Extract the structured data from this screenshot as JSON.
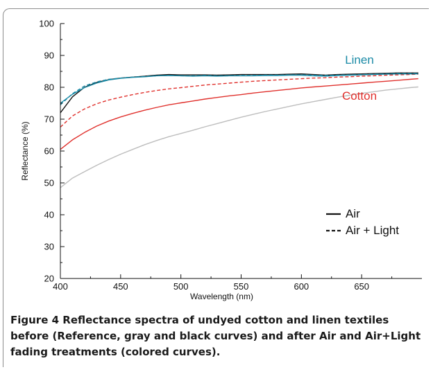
{
  "figure": {
    "caption_label": "Figure 4",
    "caption_text": " Reflectance spectra of undyed cotton and linen textiles before (Reference, gray and black curves) and after Air and Air+Light fading treatments (colored curves)."
  },
  "chart_data": {
    "type": "line",
    "xlabel": "Wavelength (nm)",
    "ylabel": "Reflectance (%)",
    "xlim": [
      400,
      700
    ],
    "ylim": [
      20,
      100
    ],
    "x_ticks": [
      400,
      450,
      500,
      550,
      600,
      650
    ],
    "y_ticks": [
      20,
      30,
      40,
      50,
      60,
      70,
      80,
      90,
      100
    ],
    "grid": false,
    "annotations": [
      {
        "text": "Linen",
        "color": "#1a8aa6"
      },
      {
        "text": "Cotton",
        "color": "#e0302c"
      }
    ],
    "legend": {
      "position": "right",
      "entries": [
        {
          "label": "Air",
          "style": "solid"
        },
        {
          "label": "Air + Light",
          "style": "dashed"
        }
      ]
    },
    "series": [
      {
        "color": "#bdbdbd",
        "style": "solid",
        "x": [
          400,
          410,
          420,
          430,
          440,
          450,
          460,
          470,
          480,
          490,
          500,
          510,
          520,
          530,
          540,
          550,
          560,
          570,
          580,
          590,
          600,
          610,
          620,
          630,
          640,
          650,
          660,
          670,
          680,
          690,
          697
        ],
        "y": [
          48.5,
          51.5,
          53.5,
          55.5,
          57.3,
          59,
          60.5,
          62,
          63.3,
          64.5,
          65.5,
          66.5,
          67.6,
          68.6,
          69.6,
          70.6,
          71.5,
          72.4,
          73.2,
          74,
          74.8,
          75.5,
          76.2,
          76.9,
          77.5,
          78.1,
          78.6,
          79.1,
          79.5,
          79.9,
          80.1
        ]
      },
      {
        "color": "#e0302c",
        "style": "solid",
        "x": [
          400,
          410,
          420,
          430,
          440,
          450,
          460,
          470,
          480,
          490,
          500,
          510,
          520,
          530,
          540,
          550,
          560,
          570,
          580,
          590,
          600,
          610,
          620,
          630,
          640,
          650,
          660,
          670,
          680,
          690,
          697
        ],
        "y": [
          60.5,
          63.5,
          65.8,
          67.8,
          69.4,
          70.7,
          71.8,
          72.8,
          73.7,
          74.5,
          75.1,
          75.7,
          76.3,
          76.8,
          77.3,
          77.7,
          78.2,
          78.6,
          79,
          79.4,
          79.8,
          80.1,
          80.4,
          80.7,
          81,
          81.3,
          81.6,
          81.9,
          82.2,
          82.5,
          82.7
        ]
      },
      {
        "color": "#e0302c",
        "style": "dashed",
        "x": [
          400,
          410,
          420,
          430,
          440,
          450,
          460,
          470,
          480,
          490,
          500,
          510,
          520,
          530,
          540,
          550,
          560,
          570,
          580,
          590,
          600,
          610,
          620,
          630,
          640,
          650,
          660,
          670,
          680,
          690,
          697
        ],
        "y": [
          67.5,
          71,
          73.2,
          74.8,
          76,
          76.9,
          77.7,
          78.4,
          79,
          79.5,
          79.9,
          80.3,
          80.7,
          81,
          81.3,
          81.6,
          81.9,
          82.1,
          82.3,
          82.5,
          82.7,
          82.9,
          83,
          83.2,
          83.3,
          83.5,
          83.6,
          83.8,
          83.9,
          84,
          84.1
        ]
      },
      {
        "color": "#111111",
        "style": "solid",
        "x": [
          400,
          410,
          420,
          430,
          440,
          450,
          460,
          470,
          480,
          490,
          500,
          510,
          520,
          530,
          540,
          550,
          560,
          570,
          580,
          590,
          600,
          610,
          620,
          630,
          640,
          650,
          660,
          670,
          680,
          690,
          697
        ],
        "y": [
          72,
          77,
          80,
          81.5,
          82.4,
          82.9,
          83.2,
          83.5,
          83.8,
          84,
          83.9,
          83.9,
          83.9,
          83.8,
          83.9,
          84,
          84,
          84,
          84,
          84.1,
          84.2,
          84,
          83.8,
          84,
          84.1,
          84.2,
          84.3,
          84.4,
          84.5,
          84.5,
          84.5
        ]
      },
      {
        "color": "#1a8aa6",
        "style": "solid",
        "x": [
          400,
          410,
          420,
          430,
          440,
          450,
          460,
          470,
          480,
          490,
          500,
          510,
          520,
          530,
          540,
          550,
          560,
          570,
          580,
          590,
          600,
          610,
          620,
          630,
          640,
          650,
          660,
          670,
          680,
          690,
          697
        ],
        "y": [
          75,
          77.8,
          79.9,
          81.3,
          82.3,
          82.8,
          83.1,
          83.3,
          83.6,
          83.7,
          83.6,
          83.5,
          83.6,
          83.5,
          83.6,
          83.6,
          83.6,
          83.7,
          83.7,
          83.8,
          83.8,
          83.6,
          83.5,
          83.7,
          83.8,
          83.9,
          84,
          84.1,
          84.2,
          84.2,
          84.2
        ]
      },
      {
        "color": "#1a8aa6",
        "style": "dashed",
        "x": [
          400,
          410,
          420,
          430,
          440,
          450,
          460,
          470,
          480,
          490,
          500,
          510,
          520,
          530,
          540,
          550,
          560,
          570,
          580,
          590,
          600,
          610,
          620,
          630,
          640,
          650,
          660,
          670,
          680,
          690,
          697
        ],
        "y": [
          74.5,
          78,
          80.4,
          81.7,
          82.5,
          82.9,
          83.2,
          83.4,
          83.6,
          83.7,
          83.6,
          83.6,
          83.7,
          83.6,
          83.6,
          83.7,
          83.7,
          83.8,
          83.8,
          83.9,
          83.9,
          83.8,
          83.7,
          83.8,
          83.9,
          84,
          84.1,
          84.2,
          84.3,
          84.3,
          84.3
        ]
      }
    ]
  }
}
